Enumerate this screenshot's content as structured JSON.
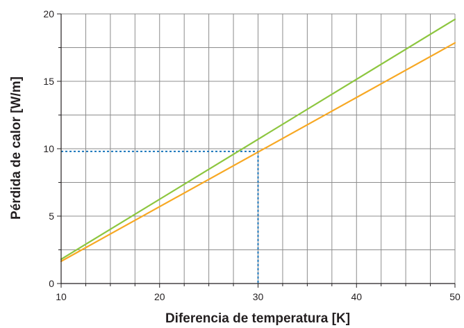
{
  "chart_data": {
    "type": "line",
    "title": "",
    "xlabel": "Diferencia de temperatura [K]",
    "ylabel": "Pérdida de calor [W/m]",
    "xlim": [
      10,
      50
    ],
    "ylim": [
      0,
      20
    ],
    "x_ticks": [
      10,
      20,
      30,
      40,
      50
    ],
    "x_tick_labels": [
      "10",
      "20",
      "30",
      "40",
      "50"
    ],
    "x_minor_step": 2.5,
    "y_ticks": [
      0,
      5,
      10,
      15,
      20
    ],
    "y_tick_labels": [
      "0",
      "5",
      "10",
      "15",
      "20"
    ],
    "y_minor_step": 2.5,
    "grid": true,
    "series": [
      {
        "color": "#8dc63f",
        "x": [
          10,
          50
        ],
        "values": [
          1.8,
          19.6
        ]
      },
      {
        "color": "#f7a823",
        "x": [
          10,
          50
        ],
        "values": [
          1.65,
          17.85
        ]
      }
    ],
    "annotation": {
      "type": "dashed-crosshair",
      "color": "#1a75bb",
      "x": 30,
      "y": 9.8
    }
  }
}
